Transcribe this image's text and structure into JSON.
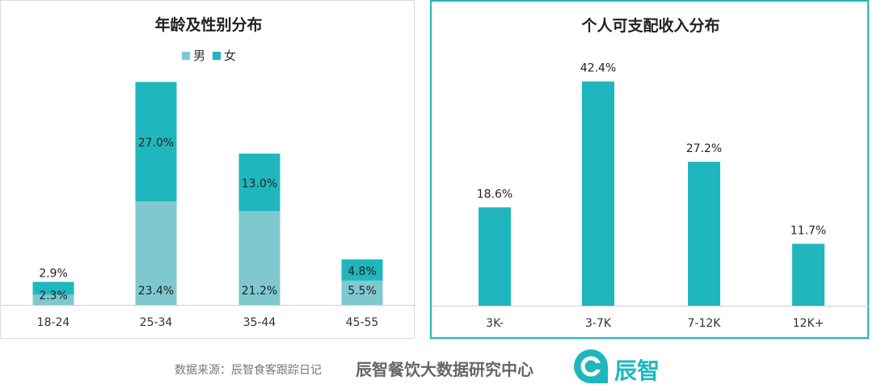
{
  "chart_data": [
    {
      "type": "bar",
      "stacked": true,
      "title": "年龄及性别分布",
      "categories": [
        "18-24",
        "25-34",
        "35-44",
        "45-55"
      ],
      "series": [
        {
          "name": "男",
          "color": "#7fc8d0",
          "values": [
            2.3,
            23.4,
            21.2,
            5.5
          ],
          "labels": [
            "2.3%",
            "23.4%",
            "21.2%",
            "5.5%"
          ]
        },
        {
          "name": "女",
          "color": "#1fb7bd",
          "values": [
            2.9,
            27.0,
            13.0,
            4.8
          ],
          "labels": [
            "2.9%",
            "27.0%",
            "13.0%",
            "4.8%"
          ]
        }
      ],
      "legend": "top-center",
      "grid": false
    },
    {
      "type": "bar",
      "title": "个人可支配收入分布",
      "categories": [
        "3K-",
        "3-7K",
        "7-12K",
        "12K+"
      ],
      "values": [
        18.6,
        42.4,
        27.2,
        11.7
      ],
      "labels": [
        "18.6%",
        "42.4%",
        "27.2%",
        "11.7%"
      ],
      "color": "#1fb7bd",
      "grid": false
    }
  ],
  "footer": {
    "source": "数据来源：辰智食客跟踪日记",
    "center_name": "辰智餐饮大数据研究中心",
    "brand_name": "辰智",
    "brand_color": "#1fb7bd"
  }
}
